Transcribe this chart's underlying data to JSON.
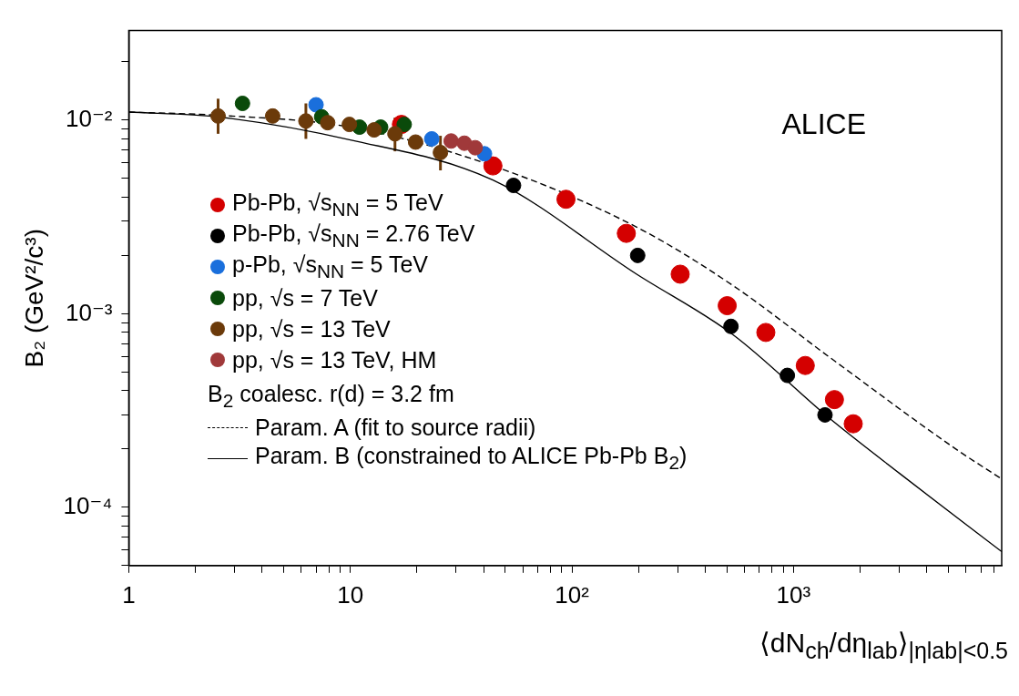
{
  "chart_data": {
    "type": "scatter",
    "xlabel": "⟨dN$_{ch}$/dη$_{lab}$⟩$_{|ηlab|<0.5}$",
    "ylabel": "B₂ (GeV²/c³)",
    "legend_title": "B$_{2}$ coalesc. r(d) = 3.2 fm",
    "annotations": [
      "ALICE"
    ],
    "log": "xy",
    "grid": false,
    "legend": "left",
    "marker": "circle",
    "xlim": [
      1,
      8700
    ],
    "ylim": [
      5e-05,
      0.029
    ],
    "xticks": [
      1,
      {
        "value": 2,
        "label": null
      },
      {
        "value": 3,
        "label": null
      },
      {
        "value": 4,
        "label": null
      },
      {
        "value": 5,
        "label": null
      },
      {
        "value": 6,
        "label": null
      },
      {
        "value": 7,
        "label": null
      },
      {
        "value": 8,
        "label": null
      },
      {
        "value": 9,
        "label": null
      },
      10,
      {
        "value": 20,
        "label": null
      },
      {
        "value": 30,
        "label": null
      },
      {
        "value": 40,
        "label": null
      },
      {
        "value": 50,
        "label": null
      },
      {
        "value": 60,
        "label": null
      },
      {
        "value": 70,
        "label": null
      },
      {
        "value": 80,
        "label": null
      },
      {
        "value": 90,
        "label": null
      },
      {
        "value": 100,
        "label": "10²"
      },
      {
        "value": 200,
        "label": null
      },
      {
        "value": 300,
        "label": null
      },
      {
        "value": 400,
        "label": null
      },
      {
        "value": 500,
        "label": null
      },
      {
        "value": 600,
        "label": null
      },
      {
        "value": 700,
        "label": null
      },
      {
        "value": 800,
        "label": null
      },
      {
        "value": 900,
        "label": null
      },
      {
        "value": 1000,
        "label": "10³"
      },
      {
        "value": 2000,
        "label": null
      },
      {
        "value": 3000,
        "label": null
      },
      {
        "value": 4000,
        "label": null
      },
      {
        "value": 5000,
        "label": null
      },
      {
        "value": 6000,
        "label": null
      },
      {
        "value": 7000,
        "label": null
      },
      {
        "value": 8000,
        "label": null
      }
    ],
    "yticks": [
      {
        "value": 5e-05,
        "label": null
      },
      {
        "value": 6e-05,
        "label": null
      },
      {
        "value": 7e-05,
        "label": null
      },
      {
        "value": 8e-05,
        "label": null
      },
      {
        "value": 9e-05,
        "label": null
      },
      {
        "value": 0.0001,
        "label": "10⁻⁴"
      },
      {
        "value": 0.0002,
        "label": null
      },
      {
        "value": 0.0003,
        "label": null
      },
      {
        "value": 0.0004,
        "label": null
      },
      {
        "value": 0.0005,
        "label": null
      },
      {
        "value": 0.0006,
        "label": null
      },
      {
        "value": 0.0007,
        "label": null
      },
      {
        "value": 0.0008,
        "label": null
      },
      {
        "value": 0.0009,
        "label": null
      },
      {
        "value": 0.001,
        "label": "10⁻³"
      },
      {
        "value": 0.002,
        "label": null
      },
      {
        "value": 0.003,
        "label": null
      },
      {
        "value": 0.004,
        "label": null
      },
      {
        "value": 0.005,
        "label": null
      },
      {
        "value": 0.006,
        "label": null
      },
      {
        "value": 0.007,
        "label": null
      },
      {
        "value": 0.008,
        "label": null
      },
      {
        "value": 0.009,
        "label": null
      },
      {
        "value": 0.01,
        "label": "10⁻²"
      },
      {
        "value": 0.02,
        "label": null
      }
    ],
    "series": [
      {
        "name": "Pb-Pb, √s$_{NN}$ = 5 TeV",
        "color": "#d40000",
        "x": [
          17,
          44,
          94,
          176,
          308,
          502,
          750,
          1130,
          1530,
          1860
        ],
        "values": [
          0.0095,
          0.0058,
          0.0039,
          0.0026,
          0.0016,
          0.0011,
          0.0008,
          0.00054,
          0.00036,
          0.00027
        ]
      },
      {
        "name": "Pb-Pb, √s$_{NN}$ = 2.76 TeV",
        "color": "#000000",
        "x": [
          54.5,
          198,
          522,
          938,
          1387
        ],
        "values": [
          0.0046,
          0.002,
          0.00086,
          0.00048,
          0.0003
        ]
      },
      {
        "name": "p-Pb, √s$_{NN}$ = 5 TeV",
        "color": "#1a6fdc",
        "x": [
          7,
          23.3,
          40.3
        ],
        "values": [
          0.012,
          0.008,
          0.0067
        ]
      },
      {
        "name": "pp, √s = 7 TeV",
        "color": "#0a4a0a",
        "x": [
          3.26,
          7.42,
          11,
          13.7,
          17.5
        ],
        "values": [
          0.0122,
          0.0104,
          0.0092,
          0.0092,
          0.0095
        ]
      },
      {
        "name": "pp, √s = 13 TeV",
        "color": "#6b3a0a",
        "x": [
          2.53,
          4.46,
          6.3,
          7.9,
          9.9,
          12.8,
          15.9,
          19.7,
          25.5
        ],
        "values": [
          0.0105,
          0.0105,
          0.0099,
          0.0097,
          0.0095,
          0.0089,
          0.0085,
          0.0077,
          0.0068
        ],
        "errors": [
          [
            0.0085,
            0.0129
          ],
          null,
          [
            0.008,
            0.0122
          ],
          null,
          null,
          null,
          [
            0.0069,
            0.0103
          ],
          null,
          [
            0.0055,
            0.0083
          ]
        ]
      },
      {
        "name": "pp, √s = 13 TeV, HM",
        "color": "#a0393a",
        "x": [
          28.5,
          32.7,
          36.6
        ],
        "values": [
          0.0078,
          0.0076,
          0.0072
        ]
      },
      {
        "name": "Param. A (fit to source radii)",
        "type": "line",
        "color": "#000000",
        "line_style": "dashed",
        "marker": "none",
        "x": [
          1,
          2.5,
          10,
          44,
          196,
          532,
          1443,
          5400,
          8700
        ],
        "values": [
          0.011,
          0.0106,
          0.0092,
          0.0058,
          0.0028,
          0.0014,
          0.0006,
          0.0002,
          0.00014
        ]
      },
      {
        "name": "Param. B (constrained to ALICE Pb-Pb B$_{2}$)",
        "type": "line",
        "color": "#000000",
        "line_style": "solid",
        "marker": "none",
        "x": [
          1,
          2.5,
          10,
          44,
          196,
          532,
          1443,
          3000,
          8700
        ],
        "values": [
          0.011,
          0.0104,
          0.0079,
          0.0049,
          0.0016,
          0.00078,
          0.00029,
          0.00015,
          5.9e-05
        ]
      }
    ]
  }
}
